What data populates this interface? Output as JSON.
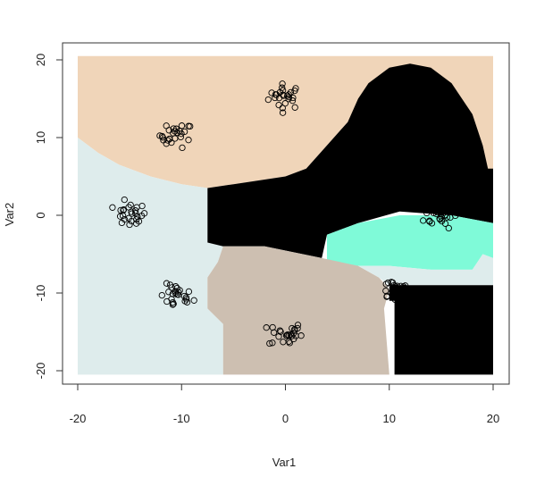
{
  "chart_data": {
    "type": "scatter",
    "title": "",
    "xlabel": "Var1",
    "ylabel": "Var2",
    "xlim": [
      -20,
      20
    ],
    "ylim": [
      -20,
      20
    ],
    "x_ticks": [
      "-20",
      "-10",
      "0",
      "10",
      "20"
    ],
    "y_ticks": [
      "-20",
      "-10",
      "0",
      "10",
      "20"
    ],
    "grid": false,
    "legend": "none",
    "marker": "open-circle",
    "region_colors": {
      "peach": "#f0d5b9",
      "lightcyan": "#deecec",
      "black": "#000000",
      "tan": "#cdbfb1",
      "aquamarine": "#7ffad8"
    },
    "regions": [
      {
        "name": "region-peach",
        "color_key": "peach",
        "polygon": [
          [
            -20,
            20.5
          ],
          [
            20,
            20.5
          ],
          [
            20,
            4
          ],
          [
            16,
            4
          ],
          [
            15,
            8
          ],
          [
            12,
            11
          ],
          [
            10,
            12
          ],
          [
            8,
            13
          ],
          [
            6,
            12
          ],
          [
            4,
            9
          ],
          [
            2,
            6
          ],
          [
            0,
            5
          ],
          [
            -5,
            4
          ],
          [
            -7.5,
            3.5
          ],
          [
            -10,
            4
          ],
          [
            -13,
            5
          ],
          [
            -16,
            6.5
          ],
          [
            -18,
            8
          ],
          [
            -20,
            10
          ]
        ]
      },
      {
        "name": "region-lightcyan",
        "color_key": "lightcyan",
        "polygon": [
          [
            -20,
            10
          ],
          [
            -18,
            8
          ],
          [
            -16,
            6.5
          ],
          [
            -13,
            5
          ],
          [
            -10,
            4
          ],
          [
            -7.5,
            3.5
          ],
          [
            -7.5,
            -3.5
          ],
          [
            -6,
            -4
          ],
          [
            -6.5,
            -6
          ],
          [
            -7.5,
            -8
          ],
          [
            -7.5,
            -12
          ],
          [
            -6,
            -14
          ],
          [
            -6,
            -20.5
          ],
          [
            -20,
            -20.5
          ]
        ]
      },
      {
        "name": "region-black-upper",
        "color_key": "black",
        "polygon": [
          [
            -7.5,
            3.5
          ],
          [
            -5,
            4
          ],
          [
            0,
            5
          ],
          [
            2,
            6
          ],
          [
            4,
            9
          ],
          [
            6,
            12
          ],
          [
            7,
            15
          ],
          [
            8,
            17
          ],
          [
            10,
            19
          ],
          [
            12,
            19.5
          ],
          [
            14,
            19
          ],
          [
            16,
            17
          ],
          [
            18,
            13
          ],
          [
            19,
            9
          ],
          [
            19.5,
            6
          ],
          [
            20,
            6
          ],
          [
            20,
            -1
          ],
          [
            16,
            0
          ],
          [
            11,
            0.5
          ],
          [
            7,
            -1
          ],
          [
            4,
            -2.5
          ],
          [
            3.5,
            -5.5
          ],
          [
            -2,
            -4
          ],
          [
            -6,
            -4
          ],
          [
            -7.5,
            -3.5
          ]
        ]
      },
      {
        "name": "region-aquamarine",
        "color_key": "aquamarine",
        "polygon": [
          [
            4,
            -2.5
          ],
          [
            7,
            -1
          ],
          [
            11,
            0
          ],
          [
            16,
            0
          ],
          [
            20,
            -1
          ],
          [
            20,
            -5.5
          ],
          [
            19,
            -5
          ],
          [
            18,
            -7
          ],
          [
            14,
            -7
          ],
          [
            10,
            -6.5
          ],
          [
            7,
            -6.5
          ],
          [
            4,
            -6
          ]
        ]
      },
      {
        "name": "region-tan",
        "color_key": "tan",
        "polygon": [
          [
            -6,
            -4
          ],
          [
            -2,
            -4
          ],
          [
            3.5,
            -5.5
          ],
          [
            7,
            -6.5
          ],
          [
            9,
            -8
          ],
          [
            10,
            -9.5
          ],
          [
            9.5,
            -12
          ],
          [
            10,
            -20.5
          ],
          [
            -6,
            -20.5
          ],
          [
            -6,
            -14
          ],
          [
            -7.5,
            -12
          ],
          [
            -7.5,
            -8
          ],
          [
            -6.5,
            -6
          ]
        ]
      },
      {
        "name": "region-lightcyan-strip",
        "color_key": "lightcyan",
        "polygon": [
          [
            7,
            -6.5
          ],
          [
            10,
            -6.5
          ],
          [
            14,
            -7
          ],
          [
            18,
            -7
          ],
          [
            19,
            -5
          ],
          [
            20,
            -5.5
          ],
          [
            20,
            -9
          ],
          [
            10,
            -9
          ],
          [
            9,
            -8
          ]
        ]
      },
      {
        "name": "region-black-lower",
        "color_key": "black",
        "polygon": [
          [
            10,
            -9
          ],
          [
            20,
            -9
          ],
          [
            20,
            -20.5
          ],
          [
            10.5,
            -20.5
          ],
          [
            10.5,
            -11
          ],
          [
            10,
            -11
          ]
        ]
      }
    ],
    "clusters": [
      {
        "name": "cluster-top-center",
        "cx": 0,
        "cy": 15.3,
        "sx": 0.8,
        "sy": 0.8,
        "n": 26
      },
      {
        "name": "cluster-upper-left",
        "cx": -10.5,
        "cy": 10.3,
        "sx": 0.8,
        "sy": 0.8,
        "n": 26
      },
      {
        "name": "cluster-left",
        "cx": -15,
        "cy": 0,
        "sx": 0.8,
        "sy": 0.8,
        "n": 26
      },
      {
        "name": "cluster-lower-left",
        "cx": -10.5,
        "cy": -10.5,
        "sx": 0.8,
        "sy": 0.8,
        "n": 26
      },
      {
        "name": "cluster-bottom-center",
        "cx": 0,
        "cy": -15.3,
        "sx": 0.8,
        "sy": 0.8,
        "n": 26
      },
      {
        "name": "cluster-lower-right",
        "cx": 10.5,
        "cy": -9.5,
        "sx": 0.8,
        "sy": 0.8,
        "n": 26
      },
      {
        "name": "cluster-right",
        "cx": 15,
        "cy": 0,
        "sx": 0.8,
        "sy": 0.8,
        "n": 26
      }
    ]
  }
}
